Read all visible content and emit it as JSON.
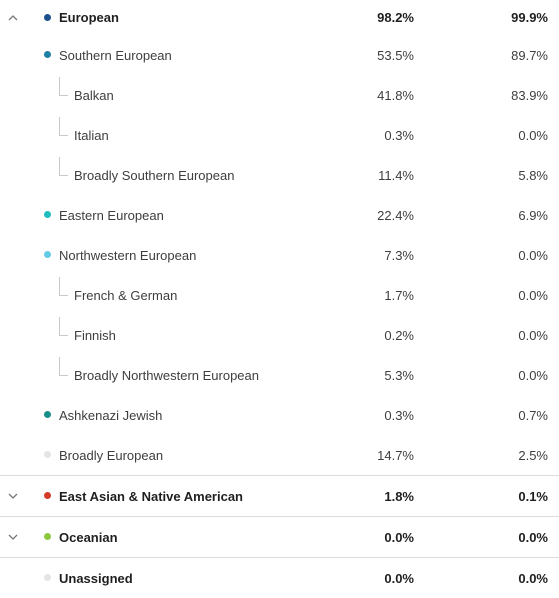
{
  "colors": {
    "european": "#1d4f8c",
    "southern_european": "#1f7fa5",
    "eastern_european": "#1fbcc0",
    "northwestern_european": "#63cbe6",
    "ashkenazi_jewish": "#1a8f8a",
    "broadly_european": "#e4e4e4",
    "east_asian_native_american": "#d63b2a",
    "oceanian": "#8dc63f",
    "unassigned": "#e4e4e4"
  },
  "icons": {
    "expanded": "chevron-up-icon",
    "collapsed": "chevron-down-icon",
    "branch": "tree-branch-icon"
  },
  "rows": {
    "european": {
      "label": "European",
      "v1": "98.2%",
      "v2": "99.9%"
    },
    "southern_european": {
      "label": "Southern European",
      "v1": "53.5%",
      "v2": "89.7%"
    },
    "balkan": {
      "label": "Balkan",
      "v1": "41.8%",
      "v2": "83.9%"
    },
    "italian": {
      "label": "Italian",
      "v1": "0.3%",
      "v2": "0.0%"
    },
    "broadly_southern_european": {
      "label": "Broadly Southern European",
      "v1": "11.4%",
      "v2": "5.8%"
    },
    "eastern_european": {
      "label": "Eastern European",
      "v1": "22.4%",
      "v2": "6.9%"
    },
    "northwestern_european": {
      "label": "Northwestern European",
      "v1": "7.3%",
      "v2": "0.0%"
    },
    "french_german": {
      "label": "French & German",
      "v1": "1.7%",
      "v2": "0.0%"
    },
    "finnish": {
      "label": "Finnish",
      "v1": "0.2%",
      "v2": "0.0%"
    },
    "broadly_northwestern_european": {
      "label": "Broadly Northwestern European",
      "v1": "5.3%",
      "v2": "0.0%"
    },
    "ashkenazi_jewish": {
      "label": "Ashkenazi Jewish",
      "v1": "0.3%",
      "v2": "0.7%"
    },
    "broadly_european": {
      "label": "Broadly European",
      "v1": "14.7%",
      "v2": "2.5%"
    },
    "east_asian_native_american": {
      "label": "East Asian & Native American",
      "v1": "1.8%",
      "v2": "0.1%"
    },
    "oceanian": {
      "label": "Oceanian",
      "v1": "0.0%",
      "v2": "0.0%"
    },
    "unassigned": {
      "label": "Unassigned",
      "v1": "0.0%",
      "v2": "0.0%"
    }
  }
}
